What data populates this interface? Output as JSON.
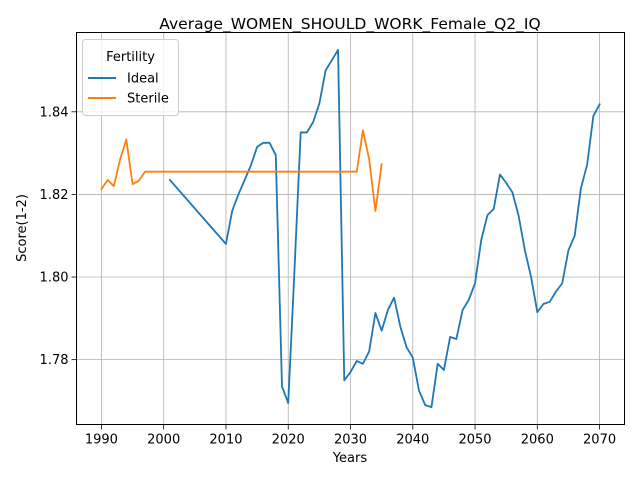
{
  "chart_data": {
    "type": "line",
    "title": "Average_WOMEN_SHOULD_WORK_Female_Q2_IQ",
    "xlabel": "Years",
    "ylabel": "Score(1-2)",
    "xlim": [
      1986.0,
      2074.0
    ],
    "ylim": [
      1.7643,
      1.8592
    ],
    "xticks": [
      1990,
      2000,
      2010,
      2020,
      2030,
      2040,
      2050,
      2060,
      2070
    ],
    "yticks": [
      1.78,
      1.8,
      1.82,
      1.84
    ],
    "ytick_labels": [
      "1.78",
      "1.80",
      "1.82",
      "1.84"
    ],
    "grid": true,
    "legend": {
      "title": "Fertility",
      "position": "upper-left"
    },
    "series": [
      {
        "name": "Ideal",
        "color": "#1f77b4",
        "x": [
          2001,
          2010,
          2011,
          2012,
          2013,
          2014,
          2015,
          2016,
          2017,
          2018,
          2019,
          2020,
          2021,
          2022,
          2023,
          2024,
          2025,
          2026,
          2027,
          2028,
          2029,
          2030,
          2031,
          2032,
          2033,
          2034,
          2035,
          2036,
          2037,
          2038,
          2039,
          2040,
          2041,
          2042,
          2043,
          2044,
          2045,
          2046,
          2047,
          2048,
          2049,
          2050,
          2051,
          2052,
          2053,
          2054,
          2055,
          2056,
          2057,
          2058,
          2059,
          2060,
          2061,
          2062,
          2063,
          2064,
          2065,
          2066,
          2067,
          2068,
          2069,
          2070
        ],
        "y": [
          1.8235,
          1.808,
          1.816,
          1.82,
          1.8235,
          1.827,
          1.8315,
          1.8325,
          1.8325,
          1.8295,
          1.7735,
          1.7695,
          1.8015,
          1.835,
          1.835,
          1.8375,
          1.842,
          1.85,
          1.8525,
          1.855,
          1.775,
          1.777,
          1.7797,
          1.779,
          1.782,
          1.7913,
          1.787,
          1.792,
          1.795,
          1.788,
          1.783,
          1.7805,
          1.7725,
          1.769,
          1.7685,
          1.779,
          1.7775,
          1.7855,
          1.785,
          1.792,
          1.7945,
          1.7985,
          1.809,
          1.815,
          1.8165,
          1.8248,
          1.8228,
          1.8205,
          1.8148,
          1.8065,
          1.8,
          1.7915,
          1.7935,
          1.794,
          1.7965,
          1.7985,
          1.8065,
          1.81,
          1.8215,
          1.8272,
          1.839,
          1.8418
        ]
      },
      {
        "name": "Sterile",
        "color": "#ff7f0e",
        "x": [
          1990,
          1991,
          1992,
          1993,
          1994,
          1995,
          1996,
          1997,
          1998,
          2031,
          2032,
          2033,
          2034,
          2035
        ],
        "y": [
          1.8213,
          1.8235,
          1.822,
          1.8285,
          1.8333,
          1.8225,
          1.8233,
          1.8255,
          1.8255,
          1.8255,
          1.8355,
          1.8285,
          1.816,
          1.8273
        ]
      }
    ]
  }
}
